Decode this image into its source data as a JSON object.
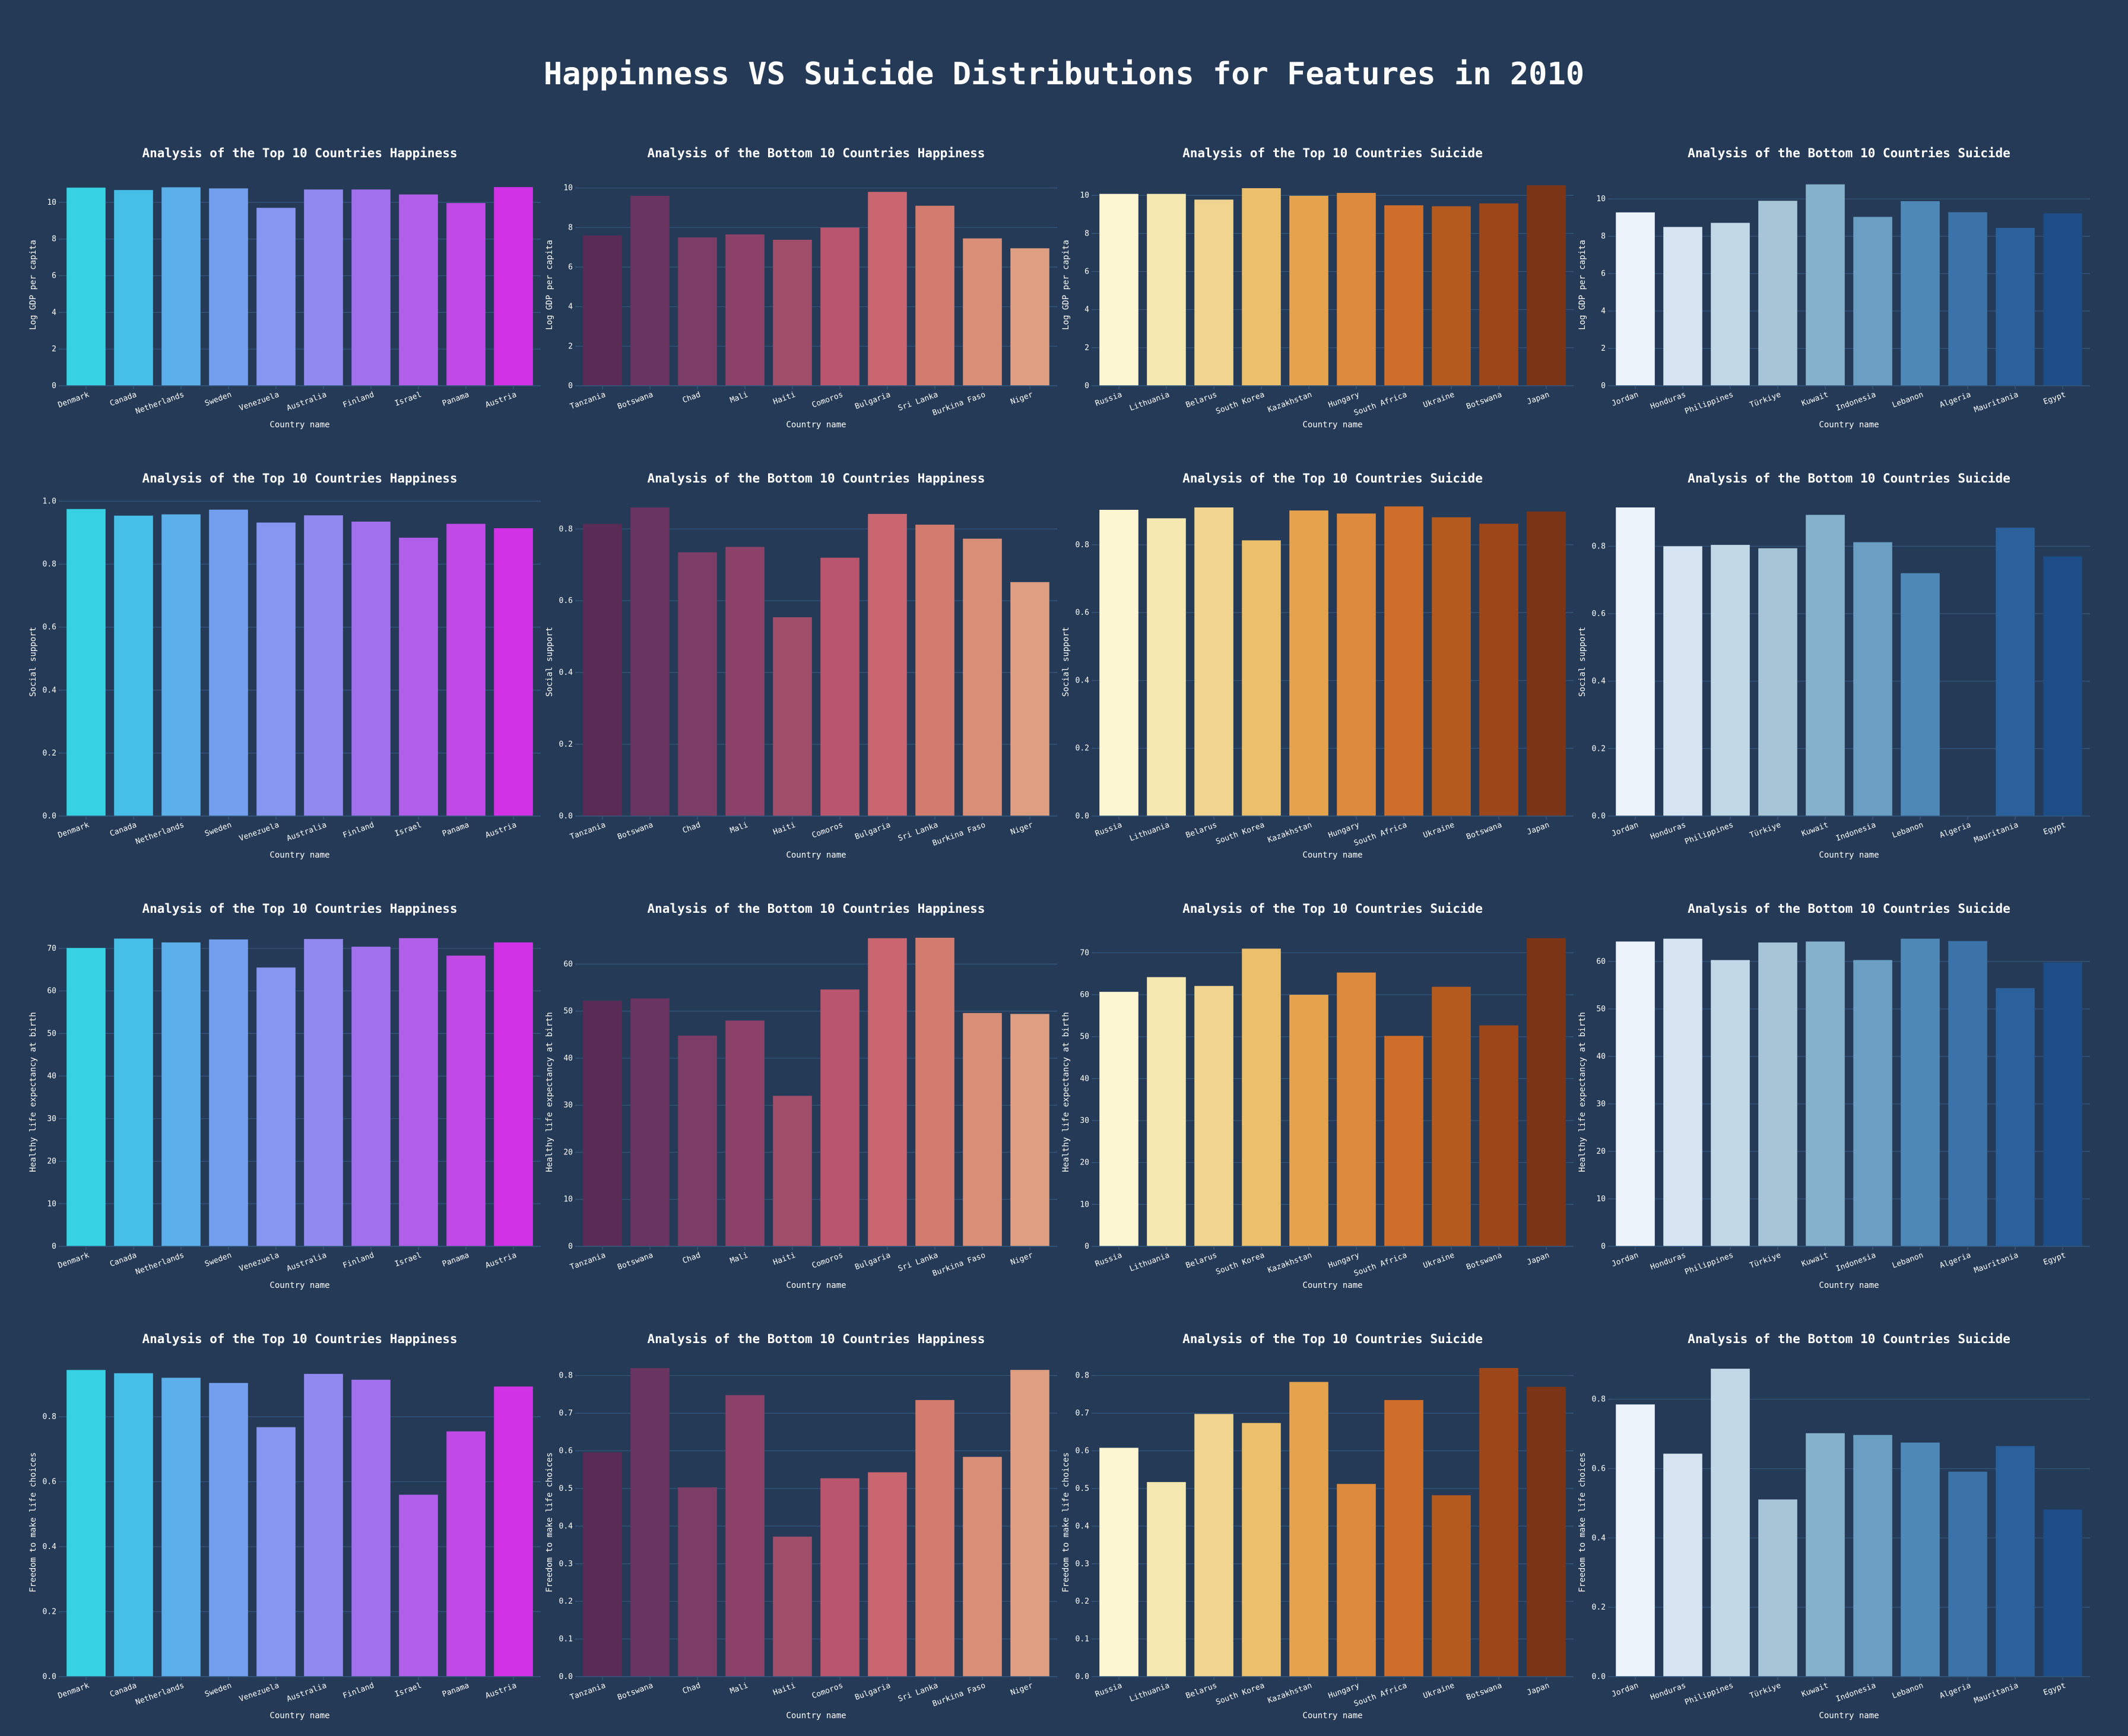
{
  "title": "Happinness VS Suicide Distributions for Features in 2010",
  "colors": {
    "background": "#253a57",
    "grid": "#33577d",
    "text": "#ffffff"
  },
  "palettes": {
    "top_happiness": [
      "#36d1e3",
      "#45bfe8",
      "#5cb0ea",
      "#73a0ee",
      "#8796f0",
      "#9289f0",
      "#a170ec",
      "#b15fea",
      "#c04ae6",
      "#d232e6"
    ],
    "bottom_happiness": [
      "#5a2b55",
      "#6a3460",
      "#7b3c66",
      "#8c4268",
      "#a04d6a",
      "#b9566e",
      "#c96670",
      "#d27b6e",
      "#d98e78",
      "#dd9e82"
    ],
    "top_suicide": [
      "#fdf6d2",
      "#f6e8b1",
      "#f0d490",
      "#ebbf6b",
      "#e6a34e",
      "#dd8a3e",
      "#cf6e2b",
      "#b55a1f",
      "#9c461a",
      "#7b3516"
    ],
    "bottom_suicide": [
      "#ecf3fb",
      "#d6e5f1",
      "#c2d8e6",
      "#a6c6d8",
      "#86b1cc",
      "#6a9ec3",
      "#4e88b7",
      "#3b73a8",
      "#2a609c",
      "#1c4d86"
    ]
  },
  "chart_data": [
    {
      "type": "bar",
      "title": "Analysis of the Top 10 Countries Happiness",
      "palette": "top_happiness",
      "xlabel": "Country name",
      "ylabel": "Log GDP per capita",
      "ylim": [
        0,
        11.0
      ],
      "yticks": [
        0,
        2,
        4,
        6,
        8,
        10
      ],
      "ytick_labels": [
        "0",
        "2",
        "4",
        "6",
        "8",
        "10"
      ],
      "categories": [
        "Denmark",
        "Canada",
        "Netherlands",
        "Sweden",
        "Venezuela",
        "Australia",
        "Finland",
        "Israel",
        "Panama",
        "Austria"
      ],
      "values": [
        10.8,
        10.67,
        10.82,
        10.76,
        9.7,
        10.7,
        10.7,
        10.43,
        9.96,
        10.83
      ]
    },
    {
      "type": "bar",
      "title": "Analysis of the Bottom 10 Countries Happiness",
      "palette": "bottom_happiness",
      "xlabel": "Country name",
      "ylabel": "Log GDP per capita",
      "ylim": [
        0,
        10.2
      ],
      "yticks": [
        0,
        2,
        4,
        6,
        8,
        10
      ],
      "ytick_labels": [
        "0",
        "2",
        "4",
        "6",
        "8",
        "10"
      ],
      "categories": [
        "Tanzania",
        "Botswana",
        "Chad",
        "Mali",
        "Haiti",
        "Comoros",
        "Bulgaria",
        "Sri Lanka",
        "Burkina Faso",
        "Niger"
      ],
      "values": [
        7.6,
        9.6,
        7.5,
        7.65,
        7.38,
        8.0,
        9.8,
        9.1,
        7.45,
        6.95
      ]
    },
    {
      "type": "bar",
      "title": "Analysis of the Top 10 Countries Suicide",
      "palette": "top_suicide",
      "xlabel": "Country name",
      "ylabel": "Log GDP per capita",
      "ylim": [
        0,
        10.6
      ],
      "yticks": [
        0,
        2,
        4,
        6,
        8,
        10
      ],
      "ytick_labels": [
        "0",
        "2",
        "4",
        "6",
        "8",
        "10"
      ],
      "categories": [
        "Russia",
        "Lithuania",
        "Belarus",
        "South Korea",
        "Kazakhstan",
        "Hungary",
        "South Africa",
        "Ukraine",
        "Botswana",
        "Japan"
      ],
      "values": [
        10.08,
        10.08,
        9.78,
        10.38,
        9.98,
        10.13,
        9.48,
        9.43,
        9.58,
        10.53
      ]
    },
    {
      "type": "bar",
      "title": "Analysis of the Bottom 10 Countries Suicide",
      "palette": "bottom_suicide",
      "xlabel": "Country name",
      "ylabel": "Log GDP per capita",
      "ylim": [
        0,
        10.8
      ],
      "yticks": [
        0,
        2,
        4,
        6,
        8,
        10
      ],
      "ytick_labels": [
        "0",
        "2",
        "4",
        "6",
        "8",
        "10"
      ],
      "categories": [
        "Jordan",
        "Honduras",
        "Philippines",
        "Türkiye",
        "Kuwait",
        "Indonesia",
        "Lebanon",
        "Algeria",
        "Mauritania",
        "Egypt"
      ],
      "values": [
        9.28,
        8.5,
        8.72,
        9.9,
        10.78,
        9.04,
        9.88,
        9.29,
        8.45,
        9.23
      ]
    },
    {
      "type": "bar",
      "title": "Analysis of the Top 10 Countries Happiness",
      "palette": "top_happiness",
      "xlabel": "Country name",
      "ylabel": "Social support",
      "ylim": [
        0,
        0.98
      ],
      "yticks": [
        0,
        0.2,
        0.4,
        0.6,
        0.8,
        1.0
      ],
      "ytick_labels": [
        "0.0",
        "0.2",
        "0.4",
        "0.6",
        "0.8",
        "1.0"
      ],
      "categories": [
        "Denmark",
        "Canada",
        "Netherlands",
        "Sweden",
        "Venezuela",
        "Australia",
        "Finland",
        "Israel",
        "Panama",
        "Austria"
      ],
      "values": [
        0.975,
        0.954,
        0.958,
        0.973,
        0.932,
        0.955,
        0.935,
        0.884,
        0.928,
        0.914
      ]
    },
    {
      "type": "bar",
      "title": "Analysis of the Bottom 10 Countries Happiness",
      "palette": "bottom_happiness",
      "xlabel": "Country name",
      "ylabel": "Social support",
      "ylim": [
        0,
        0.86
      ],
      "yticks": [
        0,
        0.2,
        0.4,
        0.6,
        0.8
      ],
      "ytick_labels": [
        "0.0",
        "0.2",
        "0.4",
        "0.6",
        "0.8"
      ],
      "categories": [
        "Tanzania",
        "Botswana",
        "Chad",
        "Mali",
        "Haiti",
        "Comoros",
        "Bulgaria",
        "Sri Lanka",
        "Burkina Faso",
        "Niger"
      ],
      "values": [
        0.814,
        0.86,
        0.735,
        0.75,
        0.554,
        0.72,
        0.842,
        0.812,
        0.773,
        0.652
      ]
    },
    {
      "type": "bar",
      "title": "Analysis of the Top 10 Countries Suicide",
      "palette": "top_suicide",
      "xlabel": "Country name",
      "ylabel": "Social support",
      "ylim": [
        0,
        0.91
      ],
      "yticks": [
        0,
        0.2,
        0.4,
        0.6,
        0.8
      ],
      "ytick_labels": [
        "0.0",
        "0.2",
        "0.4",
        "0.6",
        "0.8"
      ],
      "categories": [
        "Russia",
        "Lithuania",
        "Belarus",
        "South Korea",
        "Kazakhstan",
        "Hungary",
        "South Africa",
        "Ukraine",
        "Botswana",
        "Japan"
      ],
      "values": [
        0.903,
        0.878,
        0.91,
        0.813,
        0.901,
        0.892,
        0.913,
        0.881,
        0.862,
        0.898
      ]
    },
    {
      "type": "bar",
      "title": "Analysis of the Bottom 10 Countries Suicide",
      "palette": "bottom_suicide",
      "xlabel": "Country name",
      "ylabel": "Social support",
      "ylim": [
        0,
        0.915
      ],
      "yticks": [
        0,
        0.2,
        0.4,
        0.6,
        0.8
      ],
      "ytick_labels": [
        "0.0",
        "0.2",
        "0.4",
        "0.6",
        "0.8"
      ],
      "categories": [
        "Jordan",
        "Honduras",
        "Philippines",
        "Türkiye",
        "Kuwait",
        "Indonesia",
        "Lebanon",
        "Algeria",
        "Mauritania",
        "Egypt"
      ],
      "values": [
        0.915,
        0.8,
        0.804,
        0.794,
        0.893,
        0.812,
        0.72,
        null,
        0.855,
        0.77
      ]
    },
    {
      "type": "bar",
      "title": "Analysis of the Top 10 Countries Happiness",
      "palette": "top_happiness",
      "xlabel": "Country name",
      "ylabel": "Healthy life expectancy at birth",
      "ylim": [
        0,
        72.5
      ],
      "yticks": [
        0,
        10,
        20,
        30,
        40,
        50,
        60,
        70
      ],
      "ytick_labels": [
        "0",
        "10",
        "20",
        "30",
        "40",
        "50",
        "60",
        "70"
      ],
      "categories": [
        "Denmark",
        "Canada",
        "Netherlands",
        "Sweden",
        "Venezuela",
        "Australia",
        "Finland",
        "Israel",
        "Panama",
        "Austria"
      ],
      "values": [
        70.1,
        72.3,
        71.4,
        72.1,
        65.5,
        72.2,
        70.4,
        72.4,
        68.3,
        71.4
      ]
    },
    {
      "type": "bar",
      "title": "Analysis of the Bottom 10 Countries Happiness",
      "palette": "bottom_happiness",
      "xlabel": "Country name",
      "ylabel": "Healthy life expectancy at birth",
      "ylim": [
        0,
        65.6
      ],
      "yticks": [
        0,
        10,
        20,
        30,
        40,
        50,
        60
      ],
      "ytick_labels": [
        "0",
        "10",
        "20",
        "30",
        "40",
        "50",
        "60"
      ],
      "categories": [
        "Tanzania",
        "Botswana",
        "Chad",
        "Mali",
        "Haiti",
        "Comoros",
        "Bulgaria",
        "Sri Lanka",
        "Burkina Faso",
        "Niger"
      ],
      "values": [
        52.2,
        52.7,
        44.8,
        48.0,
        32.0,
        54.6,
        65.5,
        65.6,
        49.6,
        49.4
      ]
    },
    {
      "type": "bar",
      "title": "Analysis of the Top 10 Countries Suicide",
      "palette": "top_suicide",
      "xlabel": "Country name",
      "ylabel": "Healthy life expectancy at birth",
      "ylim": [
        0,
        73.6
      ],
      "yticks": [
        0,
        10,
        20,
        30,
        40,
        50,
        60,
        70
      ],
      "ytick_labels": [
        "0",
        "10",
        "20",
        "30",
        "40",
        "50",
        "60",
        "70"
      ],
      "categories": [
        "Russia",
        "Lithuania",
        "Belarus",
        "South Korea",
        "Kazakhstan",
        "Hungary",
        "South Africa",
        "Ukraine",
        "Botswana",
        "Japan"
      ],
      "values": [
        60.7,
        64.2,
        62.1,
        71.0,
        60.0,
        65.3,
        50.2,
        61.9,
        52.7,
        73.5
      ]
    },
    {
      "type": "bar",
      "title": "Analysis of the Bottom 10 Countries Suicide",
      "palette": "bottom_suicide",
      "xlabel": "Country name",
      "ylabel": "Healthy life expectancy at birth",
      "ylim": [
        0,
        65.0
      ],
      "yticks": [
        0,
        10,
        20,
        30,
        40,
        50,
        60
      ],
      "ytick_labels": [
        "0",
        "10",
        "20",
        "30",
        "40",
        "50",
        "60"
      ],
      "categories": [
        "Jordan",
        "Honduras",
        "Philippines",
        "Türkiye",
        "Kuwait",
        "Indonesia",
        "Lebanon",
        "Algeria",
        "Mauritania",
        "Egypt"
      ],
      "values": [
        64.2,
        64.8,
        60.3,
        64.0,
        64.2,
        60.3,
        64.8,
        64.3,
        54.4,
        59.8
      ]
    },
    {
      "type": "bar",
      "title": "Analysis of the Top 10 Countries Happiness",
      "palette": "top_happiness",
      "xlabel": "Country name",
      "ylabel": "Freedom to make life choices",
      "ylim": [
        0,
        0.95
      ],
      "yticks": [
        0,
        0.2,
        0.4,
        0.6,
        0.8
      ],
      "ytick_labels": [
        "0.0",
        "0.2",
        "0.4",
        "0.6",
        "0.8"
      ],
      "categories": [
        "Denmark",
        "Canada",
        "Netherlands",
        "Sweden",
        "Venezuela",
        "Australia",
        "Finland",
        "Israel",
        "Panama",
        "Austria"
      ],
      "values": [
        0.944,
        0.934,
        0.92,
        0.904,
        0.768,
        0.932,
        0.914,
        0.56,
        0.755,
        0.893
      ]
    },
    {
      "type": "bar",
      "title": "Analysis of the Bottom 10 Countries Happiness",
      "palette": "bottom_happiness",
      "xlabel": "Country name",
      "ylabel": "Freedom to make life choices",
      "ylim": [
        0,
        0.82
      ],
      "yticks": [
        0,
        0.1,
        0.2,
        0.3,
        0.4,
        0.5,
        0.6,
        0.7,
        0.8
      ],
      "ytick_labels": [
        "0.0",
        "0.1",
        "0.2",
        "0.3",
        "0.4",
        "0.5",
        "0.6",
        "0.7",
        "0.8"
      ],
      "categories": [
        "Tanzania",
        "Botswana",
        "Chad",
        "Mali",
        "Haiti",
        "Comoros",
        "Bulgaria",
        "Sri Lanka",
        "Burkina Faso",
        "Niger"
      ],
      "values": [
        0.596,
        0.82,
        0.503,
        0.748,
        0.372,
        0.527,
        0.543,
        0.735,
        0.584,
        0.815
      ]
    },
    {
      "type": "bar",
      "title": "Analysis of the Top 10 Countries Suicide",
      "palette": "top_suicide",
      "xlabel": "Country name",
      "ylabel": "Freedom to make life choices",
      "ylim": [
        0,
        0.82
      ],
      "yticks": [
        0,
        0.1,
        0.2,
        0.3,
        0.4,
        0.5,
        0.6,
        0.7,
        0.8
      ],
      "ytick_labels": [
        "0.0",
        "0.1",
        "0.2",
        "0.3",
        "0.4",
        "0.5",
        "0.6",
        "0.7",
        "0.8"
      ],
      "categories": [
        "Russia",
        "Lithuania",
        "Belarus",
        "South Korea",
        "Kazakhstan",
        "Hungary",
        "South Africa",
        "Ukraine",
        "Botswana",
        "Japan"
      ],
      "values": [
        0.608,
        0.517,
        0.698,
        0.674,
        0.783,
        0.512,
        0.735,
        0.482,
        0.82,
        0.77
      ]
    },
    {
      "type": "bar",
      "title": "Analysis of the Bottom 10 Countries Suicide",
      "palette": "bottom_suicide",
      "xlabel": "Country name",
      "ylabel": "Freedom to make life choices",
      "ylim": [
        0,
        0.89
      ],
      "yticks": [
        0,
        0.2,
        0.4,
        0.6,
        0.8
      ],
      "ytick_labels": [
        "0.0",
        "0.2",
        "0.4",
        "0.6",
        "0.8"
      ],
      "categories": [
        "Jordan",
        "Honduras",
        "Philippines",
        "Türkiye",
        "Kuwait",
        "Indonesia",
        "Lebanon",
        "Algeria",
        "Mauritania",
        "Egypt"
      ],
      "values": [
        0.785,
        0.643,
        0.888,
        0.511,
        0.702,
        0.697,
        0.675,
        0.591,
        0.665,
        0.482
      ]
    }
  ]
}
